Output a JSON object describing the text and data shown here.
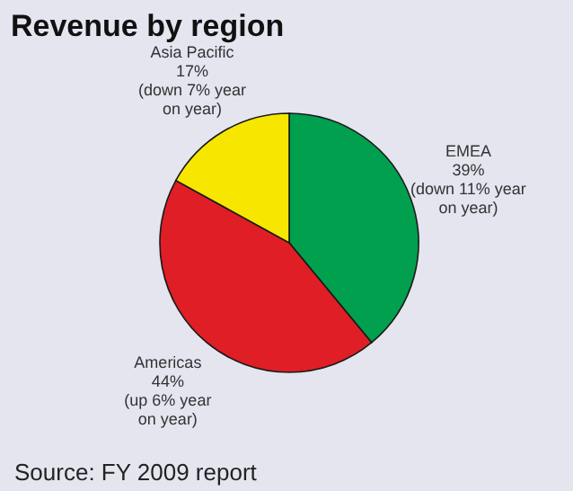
{
  "chart_data": {
    "type": "pie",
    "title": "Revenue by region",
    "categories": [
      "EMEA",
      "Americas",
      "Asia Pacific"
    ],
    "values": [
      39,
      44,
      17
    ],
    "colors": [
      "#00a04e",
      "#e01e26",
      "#f7e600"
    ],
    "value_labels": [
      "39%",
      "44%",
      "17%"
    ],
    "annotations": [
      "(down 11% year on year)",
      "(up 6% year on year)",
      "(down 7% year on year)",
      "Source: FY 2009 report"
    ]
  }
}
